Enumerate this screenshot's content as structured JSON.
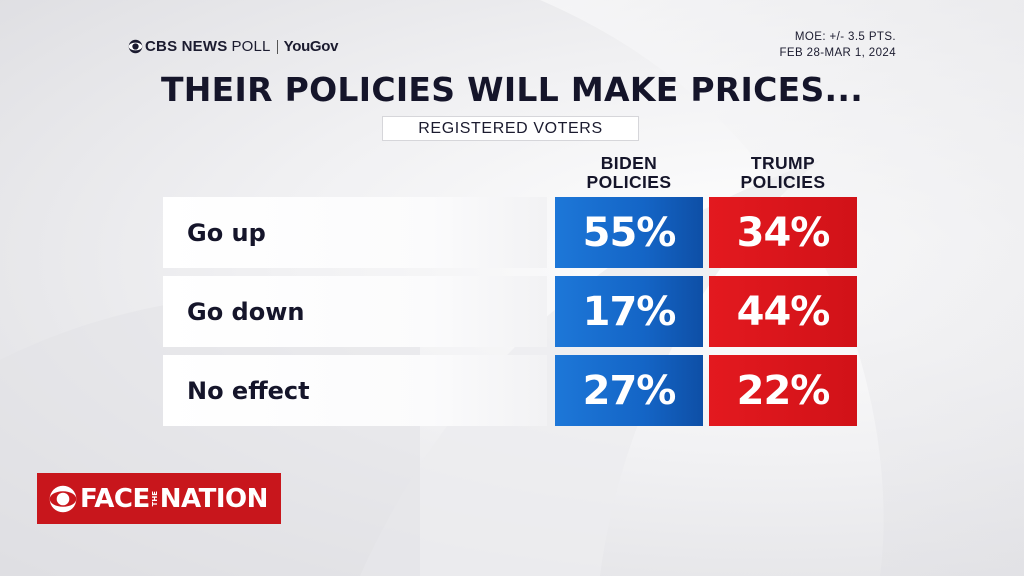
{
  "header": {
    "source_brand": "CBS NEWS",
    "source_poll": "POLL",
    "source_partner": "YouGov",
    "moe": "MOE: +/- 3.5 PTS.",
    "dates": "FEB 28-MAR 1, 2024"
  },
  "chart_data": {
    "type": "table",
    "title": "THEIR POLICIES WILL MAKE PRICES...",
    "subtitle": "REGISTERED VOTERS",
    "columns": [
      "BIDEN\nPOLICIES",
      "TRUMP\nPOLICIES"
    ],
    "rows": [
      "Go up",
      "Go down",
      "No effect"
    ],
    "series": [
      {
        "name": "BIDEN POLICIES",
        "values": [
          55,
          17,
          27
        ],
        "color": "#1465c6"
      },
      {
        "name": "TRUMP POLICIES",
        "values": [
          34,
          44,
          22
        ],
        "color": "#d11218"
      }
    ],
    "unit": "%"
  },
  "footer": {
    "logo_face": "FACE",
    "logo_the": "THE",
    "logo_nation": "NATION"
  }
}
